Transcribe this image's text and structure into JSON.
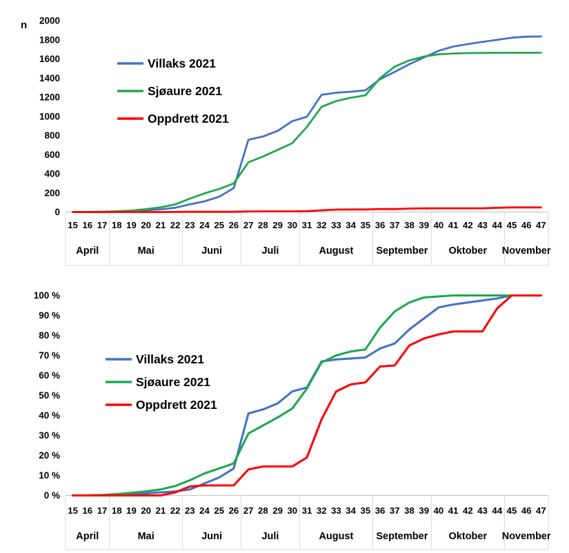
{
  "page": {
    "background": "#FFFFFF",
    "axis_line_color": "#BFBFBF",
    "divider_color": "#D9D9D9"
  },
  "chart_data": [
    {
      "id": "cumulative-counts",
      "type": "line",
      "title": "",
      "xlabel": "",
      "ylabel": "n",
      "ylim": [
        0,
        2000
      ],
      "y_ticks": [
        0,
        200,
        400,
        600,
        800,
        1000,
        1200,
        1400,
        1600,
        1800,
        2000
      ],
      "y_tick_suffix": "",
      "grid": false,
      "legend_position": "inside-upper-left",
      "x_weeks": [
        "15",
        "16",
        "17",
        "18",
        "19",
        "20",
        "21",
        "22",
        "23",
        "24",
        "25",
        "26",
        "27",
        "28",
        "29",
        "30",
        "31",
        "32",
        "33",
        "34",
        "35",
        "36",
        "37",
        "38",
        "39",
        "40",
        "41",
        "42",
        "43",
        "44",
        "45",
        "46",
        "47"
      ],
      "month_groups": [
        {
          "label": "April",
          "span": 3
        },
        {
          "label": "Mai",
          "span": 5
        },
        {
          "label": "Juni",
          "span": 4
        },
        {
          "label": "Juli",
          "span": 4
        },
        {
          "label": "August",
          "span": 5
        },
        {
          "label": "September",
          "span": 4
        },
        {
          "label": "Oktober",
          "span": 5
        },
        {
          "label": "November",
          "span": 3
        }
      ],
      "series": [
        {
          "name": "Villaks 2021",
          "color": "#4472C4",
          "values": [
            0,
            0,
            2,
            5,
            10,
            18,
            28,
            45,
            80,
            112,
            160,
            250,
            755,
            790,
            848,
            950,
            995,
            1225,
            1247,
            1258,
            1272,
            1388,
            1465,
            1545,
            1615,
            1685,
            1730,
            1755,
            1778,
            1800,
            1822,
            1833,
            1835
          ]
        },
        {
          "name": "Sjøaure 2021",
          "color": "#1FA84D",
          "values": [
            0,
            0,
            3,
            8,
            15,
            30,
            50,
            80,
            140,
            195,
            240,
            300,
            520,
            580,
            650,
            720,
            890,
            1100,
            1160,
            1195,
            1220,
            1400,
            1520,
            1585,
            1625,
            1648,
            1657,
            1661,
            1663,
            1665,
            1665,
            1665,
            1665
          ]
        },
        {
          "name": "Oppdrett 2021",
          "color": "#FF0000",
          "values": [
            0,
            0,
            0,
            0,
            0,
            0,
            0,
            1,
            2,
            2,
            2,
            2,
            6,
            7,
            7,
            7,
            9,
            18,
            25,
            27,
            27,
            31,
            31,
            36,
            38,
            39,
            39,
            39,
            39,
            45,
            48,
            48,
            48
          ]
        }
      ]
    },
    {
      "id": "cumulative-percent",
      "type": "line",
      "title": "",
      "xlabel": "",
      "ylabel": "",
      "ylim": [
        0,
        100
      ],
      "y_ticks": [
        0,
        10,
        20,
        30,
        40,
        50,
        60,
        70,
        80,
        90,
        100
      ],
      "y_tick_suffix": " %",
      "grid": false,
      "legend_position": "inside-upper-left",
      "x_weeks": [
        "15",
        "16",
        "17",
        "18",
        "19",
        "20",
        "21",
        "22",
        "23",
        "24",
        "25",
        "26",
        "27",
        "28",
        "29",
        "30",
        "31",
        "32",
        "33",
        "34",
        "35",
        "36",
        "37",
        "38",
        "39",
        "40",
        "41",
        "42",
        "43",
        "44",
        "45",
        "46",
        "47"
      ],
      "month_groups": [
        {
          "label": "April",
          "span": 3
        },
        {
          "label": "Mai",
          "span": 5
        },
        {
          "label": "Juni",
          "span": 4
        },
        {
          "label": "Juli",
          "span": 4
        },
        {
          "label": "August",
          "span": 5
        },
        {
          "label": "September",
          "span": 4
        },
        {
          "label": "Oktober",
          "span": 5
        },
        {
          "label": "November",
          "span": 3
        }
      ],
      "series": [
        {
          "name": "Villaks 2021",
          "color": "#4472C4",
          "values": [
            0,
            0,
            0.1,
            0.3,
            0.5,
            1,
            1.5,
            2,
            3,
            6,
            9,
            13.5,
            41,
            43,
            46,
            52,
            54,
            67,
            68,
            68.5,
            69,
            73.5,
            76,
            83,
            88.5,
            94,
            95.5,
            96.5,
            97.5,
            98.5,
            100,
            100,
            100
          ]
        },
        {
          "name": "Sjøaure 2021",
          "color": "#1FA84D",
          "values": [
            0,
            0,
            0.2,
            0.7,
            1.3,
            2,
            3,
            4.7,
            7.6,
            11,
            13.5,
            16,
            31,
            35,
            39,
            43.5,
            53.5,
            66.5,
            70,
            72,
            73,
            84,
            92,
            96.5,
            99,
            99.5,
            100,
            100,
            100,
            100,
            100,
            100,
            100
          ]
        },
        {
          "name": "Oppdrett 2021",
          "color": "#FF0000",
          "values": [
            0,
            0,
            0,
            0,
            0,
            0,
            0,
            1.5,
            4.5,
            5,
            5,
            5,
            13,
            14.5,
            14.5,
            14.5,
            19,
            38,
            52,
            55.5,
            56.5,
            64.5,
            65,
            75,
            78.5,
            80.5,
            82,
            82,
            82,
            93.5,
            100,
            100,
            100
          ]
        }
      ]
    }
  ]
}
